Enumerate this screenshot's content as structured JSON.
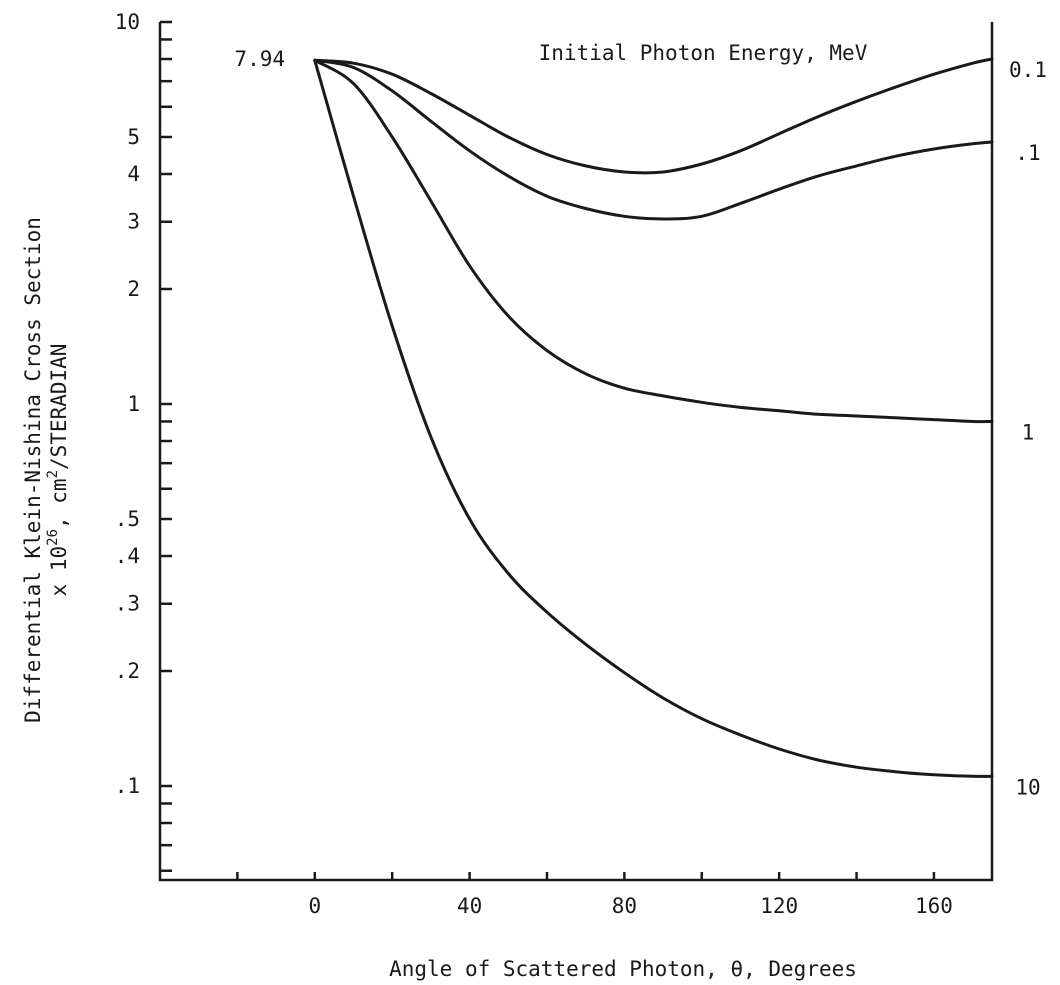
{
  "chart_data": {
    "type": "line",
    "title": "Initial Photon Energy, MeV",
    "xlabel": "Angle of Scattered Photon, θ, Degrees",
    "ylabel_line1": "Differential Klein-Nishina Cross Section",
    "ylabel_line2": "x 10",
    "ylabel_exp1": "26",
    "ylabel_mid": ", cm",
    "ylabel_exp2": "2",
    "ylabel_tail": "/STERADIAN",
    "y_scale": "log",
    "xlim": [
      -40,
      175
    ],
    "ylim": [
      0.06,
      10
    ],
    "x_ticks": [
      {
        "value": 0,
        "label": "0"
      },
      {
        "value": 40,
        "label": "40"
      },
      {
        "value": 80,
        "label": "80"
      },
      {
        "value": 120,
        "label": "120"
      },
      {
        "value": 160,
        "label": "160"
      }
    ],
    "y_ticks": [
      {
        "value": 10,
        "label": "10"
      },
      {
        "value": 5,
        "label": "5"
      },
      {
        "value": 4,
        "label": "4"
      },
      {
        "value": 3,
        "label": "3"
      },
      {
        "value": 2,
        "label": "2"
      },
      {
        "value": 1,
        "label": "1"
      },
      {
        "value": 0.5,
        "label": ".5"
      },
      {
        "value": 0.4,
        "label": ".4"
      },
      {
        "value": 0.3,
        "label": ".3"
      },
      {
        "value": 0.2,
        "label": ".2"
      },
      {
        "value": 0.1,
        "label": ".1"
      }
    ],
    "annotation": "7.94",
    "grid": false,
    "series": [
      {
        "name": "0.1",
        "x": [
          0,
          10,
          20,
          30,
          40,
          50,
          60,
          70,
          80,
          90,
          100,
          110,
          120,
          130,
          140,
          150,
          160,
          170,
          175
        ],
        "y": [
          7.94,
          7.8,
          7.3,
          6.5,
          5.7,
          5.0,
          4.5,
          4.2,
          4.05,
          4.05,
          4.25,
          4.6,
          5.1,
          5.65,
          6.2,
          6.75,
          7.3,
          7.8,
          8.0
        ]
      },
      {
        "name": ".1",
        "x": [
          0,
          10,
          20,
          30,
          40,
          50,
          60,
          70,
          80,
          90,
          100,
          110,
          120,
          130,
          140,
          150,
          160,
          170,
          175
        ],
        "y": [
          7.94,
          7.6,
          6.6,
          5.5,
          4.6,
          3.95,
          3.5,
          3.25,
          3.1,
          3.05,
          3.1,
          3.35,
          3.65,
          3.95,
          4.2,
          4.45,
          4.65,
          4.8,
          4.85
        ]
      },
      {
        "name": "1",
        "x": [
          0,
          10,
          20,
          30,
          40,
          50,
          60,
          70,
          80,
          90,
          100,
          110,
          120,
          130,
          140,
          150,
          160,
          170,
          175
        ],
        "y": [
          7.94,
          6.9,
          5.0,
          3.4,
          2.3,
          1.7,
          1.38,
          1.2,
          1.1,
          1.05,
          1.01,
          0.98,
          0.96,
          0.94,
          0.93,
          0.92,
          0.91,
          0.9,
          0.9
        ]
      },
      {
        "name": "10",
        "x": [
          0,
          10,
          20,
          30,
          40,
          50,
          60,
          70,
          80,
          90,
          100,
          110,
          120,
          130,
          140,
          150,
          160,
          170,
          175
        ],
        "y": [
          7.94,
          3.5,
          1.6,
          0.82,
          0.5,
          0.36,
          0.285,
          0.235,
          0.198,
          0.17,
          0.15,
          0.136,
          0.125,
          0.117,
          0.112,
          0.109,
          0.107,
          0.106,
          0.106
        ]
      }
    ]
  }
}
